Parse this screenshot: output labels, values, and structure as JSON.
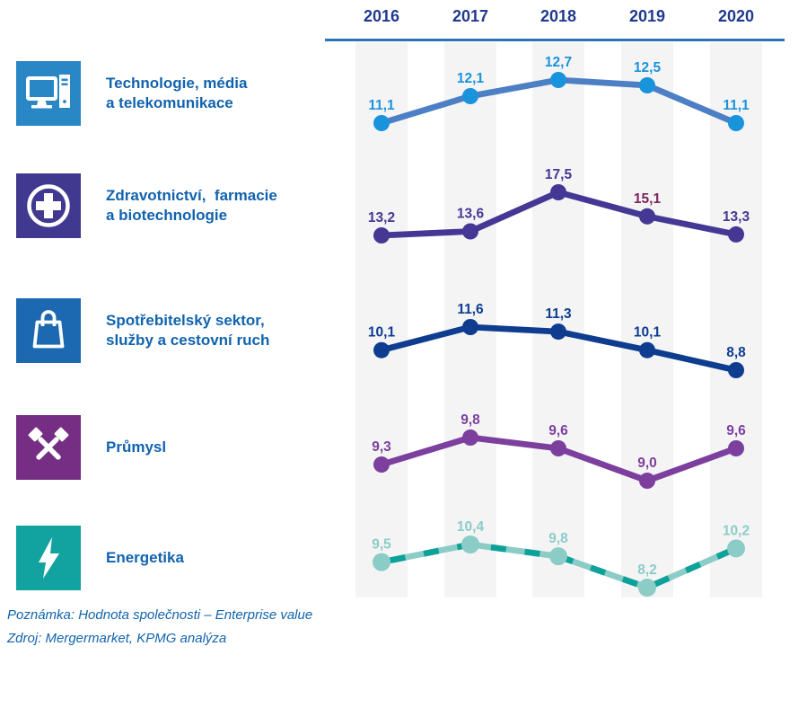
{
  "header": {
    "years": [
      "2016",
      "2017",
      "2018",
      "2019",
      "2020"
    ]
  },
  "sectors": [
    {
      "line1": "Technologie, média",
      "line2": "a telekomunikace",
      "icon": "computer-icon",
      "icon_bg": "#2a87c6"
    },
    {
      "line1": "Zdravotnictví,  farmacie",
      "line2": "a biotechnologie",
      "icon": "medical-cross-icon",
      "icon_bg": "#41398f"
    },
    {
      "line1": "Spotřebitelský sektor,",
      "line2": "služby a cestovní ruch",
      "icon": "shopping-bag-icon",
      "icon_bg": "#1c69b2"
    },
    {
      "line1": "Průmysl",
      "line2": "",
      "icon": "crossed-hammers-icon",
      "icon_bg": "#752e83"
    },
    {
      "line1": "Energetika",
      "line2": "",
      "icon": "lightning-icon",
      "icon_bg": "#12a3a0"
    }
  ],
  "chart_data": {
    "type": "line",
    "x": [
      "2016",
      "2017",
      "2018",
      "2019",
      "2020"
    ],
    "series": [
      {
        "name": "Technologie, média a telekomunikace",
        "values": [
          11.1,
          12.1,
          12.7,
          12.5,
          11.1
        ],
        "labels": [
          "11,1",
          "12,1",
          "12,7",
          "12,5",
          "11,1"
        ],
        "line_color": "#4d7fc4",
        "marker_color": "#1a93dd",
        "label_color": "#1a93dd"
      },
      {
        "name": "Zdravotnictví, farmacie a biotechnologie",
        "values": [
          13.2,
          13.6,
          17.5,
          15.1,
          13.3
        ],
        "labels": [
          "13,2",
          "13,6",
          "17,5",
          "15,1",
          "13,3"
        ],
        "line_color": "#453794",
        "marker_color": "#453794",
        "label_color": "#453794",
        "label_color_overrides": {
          "3": "#7d2458"
        }
      },
      {
        "name": "Spotřebitelský sektor, služby a cestovní ruch",
        "values": [
          10.1,
          11.6,
          11.3,
          10.1,
          8.8
        ],
        "labels": [
          "10,1",
          "11,6",
          "11,3",
          "10,1",
          "8,8"
        ],
        "line_color": "#0e3d90",
        "marker_color": "#0e3d90",
        "label_color": "#0e3d90"
      },
      {
        "name": "Průmysl",
        "values": [
          9.3,
          9.8,
          9.6,
          9.0,
          9.6
        ],
        "labels": [
          "9,3",
          "9,8",
          "9,6",
          "9,0",
          "9,6"
        ],
        "line_color": "#7c3f9e",
        "marker_color": "#7c3f9e",
        "label_color": "#7c3f9e"
      },
      {
        "name": "Energetika",
        "values": [
          9.5,
          10.4,
          9.8,
          8.2,
          10.2
        ],
        "labels": [
          "9,5",
          "10,4",
          "9,8",
          "8,2",
          "10,2"
        ],
        "dash": true,
        "line_color_light": "#8cccc7",
        "line_color_dark": "#0da19a",
        "marker_color": "#8cccc7",
        "label_color": "#8cccc7"
      }
    ],
    "grid": "column-bands",
    "band_color": "#f4f4f5",
    "axis_line_color": "#2e74b5",
    "year_label_color": "#203a8e",
    "sector_label_color": "#1163ae",
    "value_decimal_separator": ",",
    "legend_position": "left"
  },
  "footer": {
    "note": "Poznámka: Hodnota společnosti – Enterprise value",
    "source": "Zdroj: Mergermarket, KPMG analýza"
  }
}
